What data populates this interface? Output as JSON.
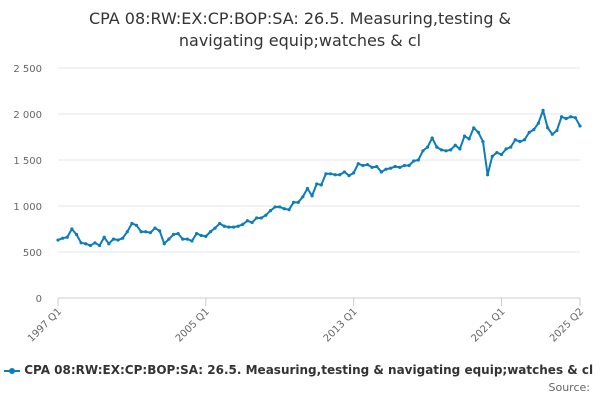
{
  "chart_data": {
    "type": "line",
    "title_lines": [
      "CPA 08:RW:EX:CP:BOP:SA: 26.5. Measuring,testing &",
      "navigating equip;watches & cl"
    ],
    "xlabel": "",
    "ylabel": "",
    "ylim": [
      0,
      2500
    ],
    "yticks": [
      0,
      500,
      1000,
      1500,
      2000,
      2500
    ],
    "ytick_labels": [
      "0",
      "500",
      "1 000",
      "1 500",
      "2 000",
      "2 500"
    ],
    "xtick_labels": [
      {
        "label": "1997 Q1",
        "index": 0
      },
      {
        "label": "2005 Q1",
        "index": 32
      },
      {
        "label": "2013 Q1",
        "index": 64
      },
      {
        "label": "2021 Q1",
        "index": 96
      },
      {
        "label": "2025 Q2",
        "index": 113
      }
    ],
    "grid": true,
    "legend_position": "bottom",
    "source_label": "Source:",
    "series": [
      {
        "name": "CPA 08:RW:EX:CP:BOP:SA: 26.5. Measuring,testing & navigating equip;watches & cl",
        "color": "#0b7db8",
        "start": "1997 Q1",
        "values": [
          630,
          650,
          660,
          750,
          690,
          600,
          590,
          570,
          600,
          570,
          660,
          590,
          640,
          630,
          650,
          720,
          810,
          790,
          720,
          720,
          710,
          760,
          730,
          590,
          640,
          690,
          700,
          640,
          640,
          620,
          700,
          680,
          670,
          720,
          760,
          810,
          780,
          770,
          770,
          780,
          800,
          840,
          820,
          870,
          870,
          900,
          950,
          990,
          990,
          970,
          960,
          1040,
          1040,
          1100,
          1190,
          1110,
          1240,
          1230,
          1350,
          1350,
          1340,
          1340,
          1370,
          1330,
          1360,
          1460,
          1440,
          1450,
          1420,
          1430,
          1370,
          1400,
          1410,
          1430,
          1420,
          1440,
          1440,
          1490,
          1500,
          1600,
          1640,
          1740,
          1640,
          1610,
          1600,
          1610,
          1660,
          1620,
          1760,
          1730,
          1850,
          1800,
          1700,
          1340,
          1540,
          1580,
          1560,
          1620,
          1640,
          1720,
          1700,
          1720,
          1800,
          1830,
          1900,
          2040,
          1850,
          1780,
          1820,
          1970,
          1950,
          1970,
          1960,
          1870
        ]
      }
    ]
  }
}
